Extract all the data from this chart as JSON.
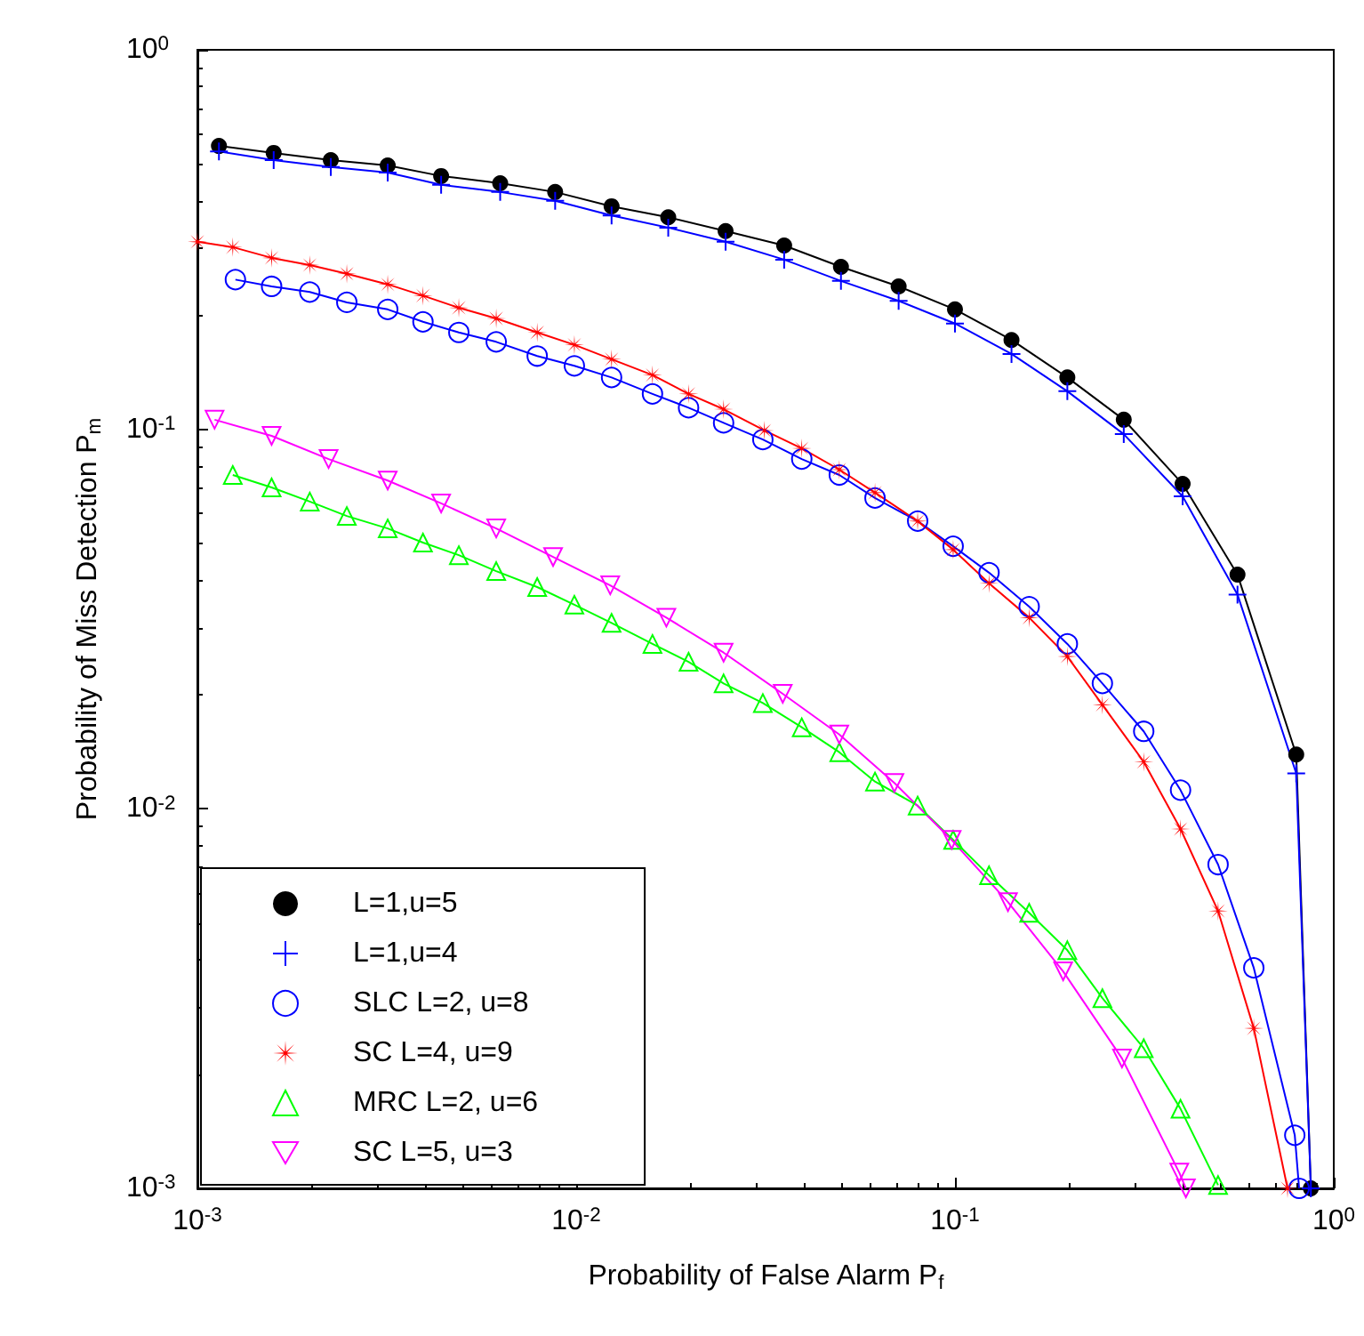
{
  "chart_data": {
    "type": "line",
    "xlabel": "Probability of False Alarm P$_{f}$",
    "ylabel": "Probability of Miss Detection P$_{m}$",
    "log": "xy",
    "xlim": [
      0.001,
      1
    ],
    "ylim": [
      0.001,
      1
    ],
    "xticks": [
      {
        "value": 0.001,
        "label": "10$^{-3}$"
      },
      {
        "value": 0.01,
        "label": "10$^{-2}$"
      },
      {
        "value": 0.1,
        "label": "10$^{-1}$"
      },
      {
        "value": 1,
        "label": "10$^{0}$"
      }
    ],
    "yticks": [
      {
        "value": 0.001,
        "label": "10$^{-3}$"
      },
      {
        "value": 0.01,
        "label": "10$^{-2}$"
      },
      {
        "value": 0.1,
        "label": "10$^{-1}$"
      },
      {
        "value": 1,
        "label": "10$^{0}$"
      }
    ],
    "legend": "bottom left",
    "line_style": "solid",
    "series": [
      {
        "name": "L=1,u=5",
        "color": "#000000",
        "marker": "circle",
        "x": [
          0.00114,
          0.00159,
          0.00225,
          0.00318,
          0.0044,
          0.0063,
          0.0088,
          0.0124,
          0.0175,
          0.0248,
          0.0354,
          0.05,
          0.071,
          0.1,
          0.141,
          0.198,
          0.279,
          0.399,
          0.557,
          0.796,
          0.87
        ],
        "values": [
          0.558,
          0.535,
          0.512,
          0.496,
          0.465,
          0.445,
          0.422,
          0.387,
          0.362,
          0.333,
          0.305,
          0.268,
          0.238,
          0.207,
          0.172,
          0.137,
          0.106,
          0.0718,
          0.0414,
          0.0139,
          0.001
        ]
      },
      {
        "name": "L=1,u=4",
        "color": "#0000ff",
        "marker": "cross",
        "x": [
          0.00114,
          0.00159,
          0.00225,
          0.00318,
          0.0044,
          0.0063,
          0.0088,
          0.0124,
          0.0175,
          0.0248,
          0.0354,
          0.05,
          0.071,
          0.1,
          0.141,
          0.198,
          0.279,
          0.399,
          0.557,
          0.796,
          0.87
        ],
        "values": [
          0.54,
          0.512,
          0.491,
          0.475,
          0.441,
          0.422,
          0.4,
          0.366,
          0.34,
          0.312,
          0.28,
          0.246,
          0.218,
          0.19,
          0.158,
          0.126,
          0.0971,
          0.0666,
          0.0367,
          0.0124,
          0.001
        ]
      },
      {
        "name": "SLC L=2, u=8",
        "color": "#0000ff",
        "marker": "open_circle",
        "x": [
          0.00126,
          0.00157,
          0.00198,
          0.00248,
          0.00318,
          0.00394,
          0.0049,
          0.00615,
          0.00789,
          0.00989,
          0.0124,
          0.0159,
          0.0198,
          0.0245,
          0.0311,
          0.0394,
          0.0495,
          0.0615,
          0.0797,
          0.0989,
          0.123,
          0.157,
          0.198,
          0.245,
          0.315,
          0.394,
          0.495,
          0.615,
          0.789,
          0.81
        ],
        "values": [
          0.248,
          0.238,
          0.23,
          0.216,
          0.207,
          0.192,
          0.18,
          0.17,
          0.156,
          0.147,
          0.137,
          0.124,
          0.114,
          0.104,
          0.094,
          0.0835,
          0.0758,
          0.0659,
          0.0573,
          0.0492,
          0.0419,
          0.0341,
          0.0272,
          0.0214,
          0.016,
          0.0112,
          0.00713,
          0.00381,
          0.00138,
          0.001
        ]
      },
      {
        "name": "SC L=4, u=9",
        "color": "#ff0000",
        "marker": "star",
        "x": [
          0.001,
          0.00124,
          0.00157,
          0.00198,
          0.00248,
          0.00318,
          0.00394,
          0.0049,
          0.00615,
          0.00789,
          0.00989,
          0.0124,
          0.0159,
          0.0198,
          0.0245,
          0.0314,
          0.0394,
          0.0495,
          0.0615,
          0.0797,
          0.0989,
          0.123,
          0.157,
          0.198,
          0.245,
          0.315,
          0.394,
          0.495,
          0.615,
          0.755
        ],
        "values": [
          0.312,
          0.302,
          0.283,
          0.271,
          0.257,
          0.241,
          0.225,
          0.209,
          0.196,
          0.18,
          0.167,
          0.153,
          0.139,
          0.124,
          0.113,
          0.0993,
          0.0891,
          0.0783,
          0.0681,
          0.0573,
          0.0482,
          0.0393,
          0.0319,
          0.0252,
          0.0188,
          0.0133,
          0.00885,
          0.00538,
          0.00264,
          0.001
        ]
      },
      {
        "name": "MRC L=2, u=6",
        "color": "#00ff00",
        "marker": "triangle",
        "x": [
          0.00124,
          0.00157,
          0.00198,
          0.00248,
          0.00318,
          0.00394,
          0.0049,
          0.00615,
          0.00789,
          0.00989,
          0.0124,
          0.0159,
          0.0198,
          0.0245,
          0.0311,
          0.0394,
          0.0495,
          0.0615,
          0.0797,
          0.0989,
          0.123,
          0.157,
          0.198,
          0.245,
          0.315,
          0.394,
          0.495
        ],
        "values": [
          0.0758,
          0.0703,
          0.0645,
          0.0591,
          0.0548,
          0.0503,
          0.0466,
          0.0423,
          0.0384,
          0.0345,
          0.0309,
          0.0272,
          0.0244,
          0.0214,
          0.019,
          0.0164,
          0.0141,
          0.0118,
          0.0102,
          0.00828,
          0.00668,
          0.00532,
          0.00424,
          0.00317,
          0.00234,
          0.00162,
          0.00102
        ]
      },
      {
        "name": "SC L=5, u=3",
        "color": "#ff00ff",
        "marker": "triangle_down",
        "x": [
          0.00111,
          0.00157,
          0.00222,
          0.00318,
          0.0044,
          0.00615,
          0.00869,
          0.0123,
          0.0173,
          0.0245,
          0.0351,
          0.0495,
          0.0692,
          0.098,
          0.138,
          0.193,
          0.276,
          0.391,
          0.407
        ],
        "values": [
          0.106,
          0.0961,
          0.0835,
          0.0733,
          0.0638,
          0.0548,
          0.0461,
          0.0388,
          0.0319,
          0.0258,
          0.0201,
          0.0157,
          0.0117,
          0.00828,
          0.00568,
          0.00373,
          0.0022,
          0.0011,
          0.001
        ]
      }
    ]
  }
}
